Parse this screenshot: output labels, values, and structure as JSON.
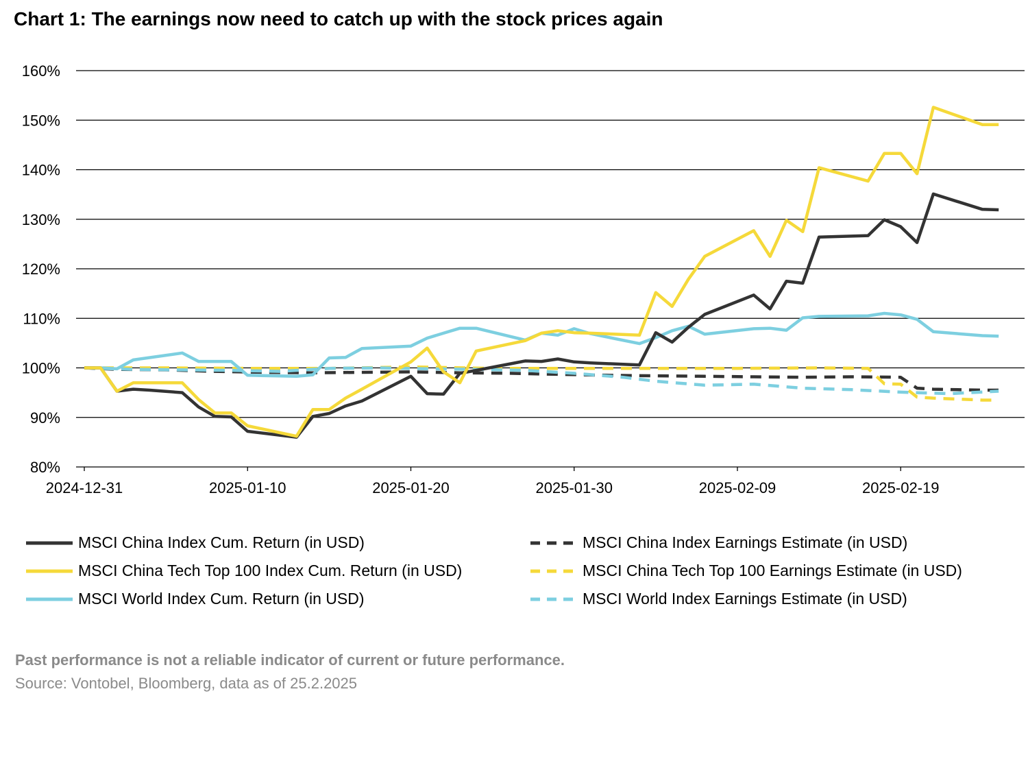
{
  "title": "Chart 1: The earnings now need to catch up with the stock prices again",
  "disclaimer": "Past performance is not a reliable indicator of current or future performance.",
  "source": "Source: Vontobel, Bloomberg, data as of 25.2.2025",
  "chart_data": {
    "type": "line",
    "xlabel": "",
    "ylabel": "",
    "ylim": [
      80,
      160
    ],
    "y_ticks": [
      "80%",
      "90%",
      "100%",
      "110%",
      "120%",
      "130%",
      "140%",
      "150%",
      "160%"
    ],
    "y_tick_values": [
      80,
      90,
      100,
      110,
      120,
      130,
      140,
      150,
      160
    ],
    "x_ticks": [
      "2024-12-31",
      "2025-01-10",
      "2025-01-20",
      "2025-01-30",
      "2025-02-09",
      "2025-02-19"
    ],
    "x_tick_values": [
      0,
      10,
      20,
      30,
      40,
      50
    ],
    "xlim": [
      0,
      57
    ],
    "grid": true,
    "legend_position": "bottom",
    "series": [
      {
        "name": "MSCI China Index  Cum. Return (in USD)",
        "color": "#333333",
        "dash": "solid",
        "x": [
          0,
          1,
          2,
          3,
          4,
          6,
          7,
          8,
          9,
          10,
          13,
          14,
          15,
          16,
          17,
          20,
          21,
          22,
          23,
          24,
          27,
          28,
          29,
          30,
          31,
          34,
          35,
          36,
          37,
          38,
          41,
          42,
          43,
          44,
          45,
          48,
          49,
          50,
          51,
          52,
          55,
          56
        ],
        "y": [
          100,
          100,
          95.3,
          95.7,
          95.5,
          95.0,
          92.1,
          90.2,
          90.1,
          87.2,
          86.0,
          90.2,
          90.8,
          92.3,
          93.3,
          98.3,
          94.8,
          94.7,
          98.9,
          99.5,
          101.4,
          101.3,
          101.8,
          101.2,
          101.0,
          100.6,
          107.1,
          105.2,
          108.2,
          110.8,
          114.7,
          111.9,
          117.5,
          117.1,
          126.4,
          126.7,
          129.9,
          128.5,
          125.3,
          135.1,
          132.0,
          131.9
        ]
      },
      {
        "name": "MSCI China Tech Top 100 Index  Cum. Return (in USD)",
        "color": "#f5d93a",
        "dash": "solid",
        "x": [
          0,
          1,
          2,
          3,
          4,
          6,
          7,
          8,
          9,
          10,
          13,
          14,
          15,
          16,
          17,
          20,
          21,
          22,
          23,
          24,
          27,
          28,
          29,
          30,
          31,
          34,
          35,
          36,
          37,
          38,
          41,
          42,
          43,
          44,
          45,
          48,
          49,
          50,
          51,
          52,
          55,
          56
        ],
        "y": [
          100,
          100,
          95.3,
          97.0,
          97.0,
          97.0,
          93.6,
          90.9,
          90.9,
          88.3,
          86.2,
          91.6,
          91.6,
          93.9,
          95.7,
          101.2,
          104.0,
          99.2,
          97.0,
          103.4,
          105.5,
          107.0,
          107.5,
          107.1,
          107.0,
          106.6,
          115.2,
          112.4,
          117.9,
          122.5,
          127.7,
          122.5,
          129.8,
          127.5,
          140.4,
          137.7,
          143.3,
          143.3,
          139.2,
          152.6,
          149.1,
          149.1
        ]
      },
      {
        "name": "MSCI World Index  Cum. Return (in USD)",
        "color": "#7dcfe0",
        "dash": "solid",
        "x": [
          0,
          1,
          2,
          3,
          6,
          7,
          8,
          9,
          10,
          13,
          14,
          15,
          16,
          17,
          20,
          21,
          22,
          23,
          24,
          27,
          28,
          29,
          30,
          31,
          34,
          35,
          36,
          37,
          38,
          41,
          42,
          43,
          44,
          45,
          48,
          49,
          50,
          51,
          52,
          55,
          56
        ],
        "y": [
          100,
          100,
          99.8,
          101.6,
          103.0,
          101.3,
          101.3,
          101.3,
          98.5,
          98.3,
          98.6,
          102.0,
          102.1,
          103.9,
          104.4,
          106.0,
          107.0,
          108.0,
          108.0,
          105.6,
          107.0,
          106.6,
          107.9,
          106.9,
          104.9,
          106.1,
          107.5,
          108.4,
          106.8,
          107.9,
          108.0,
          107.6,
          110.1,
          110.4,
          110.5,
          111.0,
          110.7,
          109.8,
          107.3,
          106.5,
          106.4
        ]
      },
      {
        "name": "MSCI China Index Earnings Estimate (in USD)",
        "color": "#333333",
        "dash": "dashed",
        "x": [
          0,
          2,
          5,
          8,
          11,
          14,
          17,
          20,
          23,
          26,
          29,
          32,
          35,
          38,
          41,
          44,
          47,
          50,
          51,
          52,
          55,
          56
        ],
        "y": [
          100,
          99.7,
          99.6,
          99.3,
          99.1,
          99.0,
          99.1,
          99.2,
          99.0,
          98.9,
          98.7,
          98.5,
          98.4,
          98.3,
          98.2,
          98.1,
          98.2,
          98.1,
          95.9,
          95.7,
          95.5,
          95.5
        ]
      },
      {
        "name": "MSCI China Tech Top 100 Earnings Estimate (in USD)",
        "color": "#f5d93a",
        "dash": "dashed",
        "x": [
          0,
          5,
          10,
          15,
          20,
          25,
          30,
          35,
          40,
          45,
          48,
          49,
          50,
          51,
          52,
          55,
          56
        ],
        "y": [
          100,
          100,
          99.9,
          99.9,
          100.2,
          99.9,
          99.9,
          99.9,
          99.9,
          100.0,
          99.9,
          96.8,
          96.7,
          94.1,
          93.9,
          93.5,
          93.5
        ]
      },
      {
        "name": "MSCI World Index Earnings Estimate (in USD)",
        "color": "#7dcfe0",
        "dash": "dashed",
        "x": [
          0,
          3,
          6,
          9,
          12,
          15,
          18,
          21,
          24,
          27,
          30,
          33,
          35,
          38,
          41,
          44,
          47,
          50,
          53,
          56
        ],
        "y": [
          100,
          99.7,
          99.6,
          99.5,
          99.3,
          99.9,
          100.0,
          99.8,
          99.7,
          99.5,
          98.9,
          98.1,
          97.3,
          96.5,
          96.7,
          95.9,
          95.6,
          95.1,
          94.8,
          95.3
        ]
      }
    ]
  }
}
